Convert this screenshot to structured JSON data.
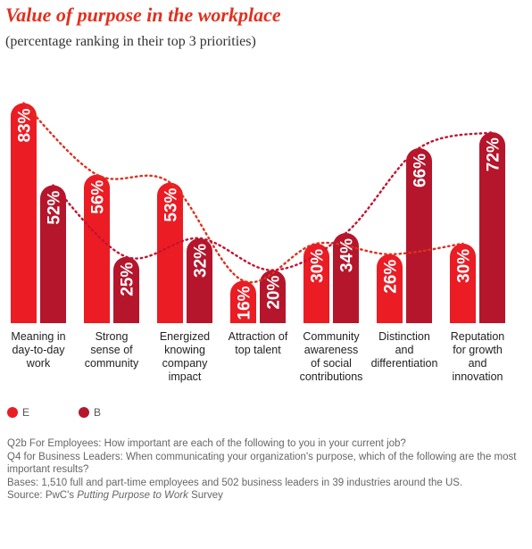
{
  "title": "Value of purpose in the workplace",
  "subtitle": "(percentage ranking in their top 3 priorities)",
  "colors": {
    "E": "#eb1c24",
    "B": "#b5162c",
    "trend_E": "#e0301e",
    "trend_B": "#c41230"
  },
  "legend": [
    {
      "name": "E",
      "color": "#eb1c24"
    },
    {
      "name": "B",
      "color": "#b5162c"
    }
  ],
  "chart_data": {
    "type": "bar",
    "categories": [
      "Meaning in day-to-day work",
      "Strong sense of community",
      "Energized knowing company impact",
      "Attraction of top talent",
      "Community awareness of social contributions",
      "Distinction and differentiation",
      "Reputation for growth and innovation"
    ],
    "category_lines": [
      [
        "Meaning in",
        "day-to-day",
        "work"
      ],
      [
        "Strong",
        "sense of",
        "community"
      ],
      [
        "Energized",
        "knowing",
        "company",
        "impact"
      ],
      [
        "Attraction of",
        "top talent"
      ],
      [
        "Community",
        "awareness",
        "of social",
        "contributions"
      ],
      [
        "Distinction",
        "and",
        "differentiation"
      ],
      [
        "Reputation",
        "for growth",
        "and",
        "innovation"
      ]
    ],
    "series": [
      {
        "name": "E",
        "values": [
          83,
          56,
          53,
          16,
          30,
          26,
          30
        ]
      },
      {
        "name": "B",
        "values": [
          52,
          25,
          32,
          20,
          34,
          66,
          72
        ]
      }
    ],
    "data_labels": {
      "E": [
        "83%",
        "56%",
        "53%",
        "16%",
        "30%",
        "26%",
        "30%"
      ],
      "B": [
        "52%",
        "25%",
        "32%",
        "20%",
        "34%",
        "66%",
        "72%"
      ]
    },
    "ylim": [
      0,
      100
    ],
    "grid": false,
    "legend_position": "bottom-left",
    "trendlines": "dotted"
  },
  "footnote": {
    "q2b": "Q2b For Employees: How important are each of the following to you in your current job?",
    "q4": "Q4 for Business Leaders: When communicating your organization's purpose, which of the following are the most important results?",
    "bases": "Bases: 1,510 full and part-time employees and 502 business leaders in 39 industries around the US.",
    "source_prefix": "Source: PwC's ",
    "source_title": "Putting Purpose to Work",
    "source_suffix": " Survey"
  }
}
